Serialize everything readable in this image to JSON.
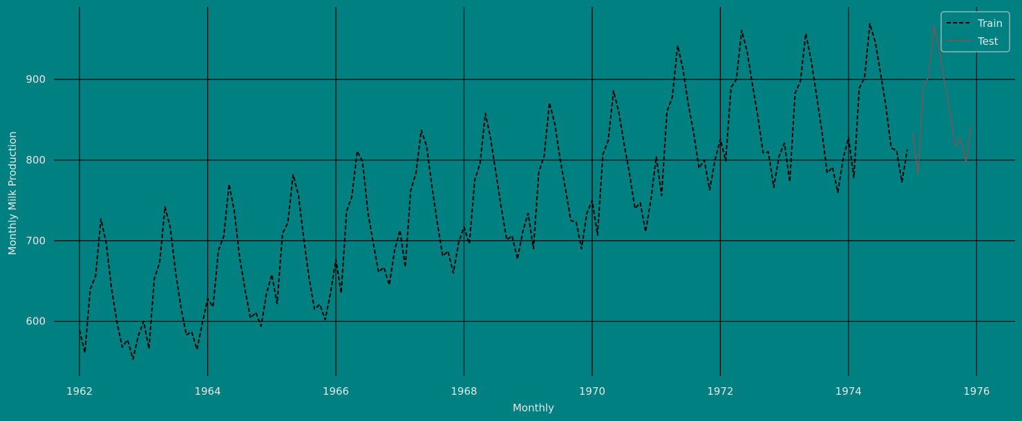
{
  "chart_data": {
    "type": "line",
    "title": "",
    "xlabel": "Monthly",
    "ylabel": "Monthly Milk Production",
    "xlim": [
      1961.6,
      1976.6
    ],
    "ylim": [
      532,
      990
    ],
    "x_ticks": [
      1962,
      1964,
      1966,
      1968,
      1970,
      1972,
      1974,
      1976
    ],
    "x_tick_labels": [
      "1962",
      "1964",
      "1966",
      "1968",
      "1970",
      "1972",
      "1974",
      "1976"
    ],
    "y_ticks": [
      600,
      700,
      800,
      900
    ],
    "y_tick_labels": [
      "600",
      "700",
      "800",
      "900"
    ],
    "grid": true,
    "legend_position": "top-right",
    "x_start_year": 1962,
    "series": [
      {
        "name": "Train",
        "style": "dashed",
        "color": "#000000",
        "start": "1962-01",
        "frequency": "monthly",
        "values": [
          589,
          561,
          640,
          656,
          727,
          697,
          640,
          599,
          568,
          577,
          553,
          582,
          600,
          566,
          653,
          673,
          742,
          716,
          660,
          617,
          583,
          587,
          565,
          598,
          628,
          618,
          688,
          705,
          770,
          736,
          678,
          639,
          604,
          611,
          594,
          634,
          658,
          622,
          709,
          722,
          782,
          756,
          702,
          653,
          615,
          621,
          602,
          635,
          677,
          635,
          736,
          755,
          811,
          798,
          735,
          697,
          661,
          667,
          645,
          688,
          713,
          667,
          762,
          784,
          837,
          817,
          767,
          722,
          681,
          687,
          660,
          698,
          717,
          696,
          775,
          796,
          858,
          826,
          783,
          740,
          701,
          706,
          677,
          711,
          734,
          690,
          785,
          805,
          871,
          845,
          801,
          764,
          725,
          723,
          690,
          734,
          750,
          707,
          807,
          824,
          886,
          859,
          819,
          783,
          740,
          747,
          711,
          751,
          804,
          756,
          860,
          878,
          942,
          913,
          869,
          834,
          790,
          800,
          763,
          800,
          826,
          799,
          890,
          900,
          961,
          935,
          894,
          855,
          809,
          810,
          766,
          805,
          821,
          773,
          883,
          898,
          957,
          924,
          881,
          837,
          784,
          791,
          760,
          802,
          828,
          778,
          889,
          902,
          969,
          947,
          908,
          867,
          815,
          812,
          773,
          813
        ]
      },
      {
        "name": "Test",
        "style": "solid",
        "color": "#5f5f5f",
        "start": "1975-01",
        "frequency": "monthly",
        "values": [
          834,
          782,
          892,
          903,
          966,
          937,
          896,
          858,
          817,
          827,
          797,
          843
        ]
      }
    ]
  }
}
